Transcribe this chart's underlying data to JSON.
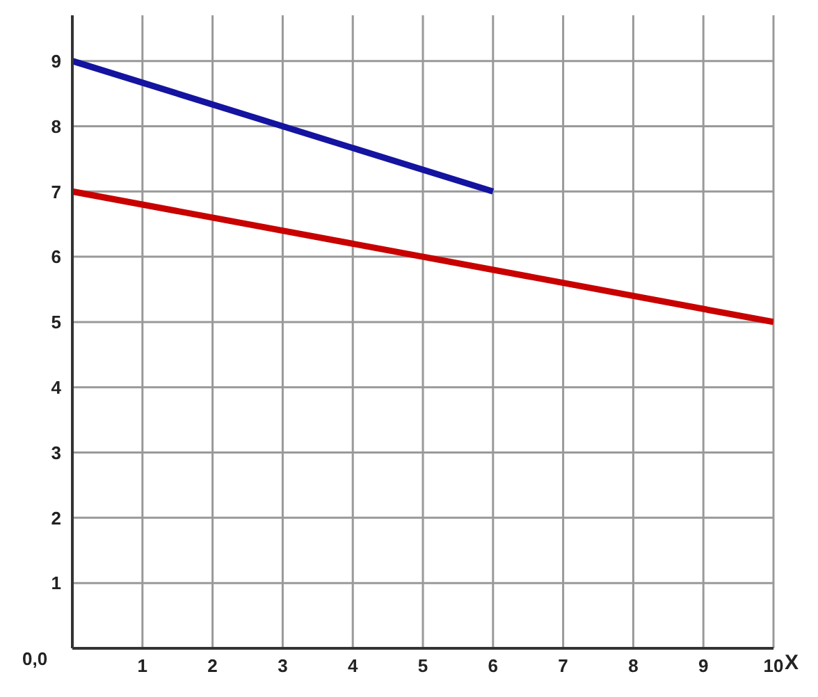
{
  "chart_data": {
    "type": "line",
    "xlabel": "X",
    "xlim": [
      0,
      10
    ],
    "xticks": [
      1,
      2,
      3,
      4,
      5,
      6,
      7,
      8,
      9,
      10
    ],
    "ylim": [
      0,
      9.7
    ],
    "yticks": [
      1,
      2,
      3,
      4,
      5,
      6,
      7,
      8,
      9
    ],
    "grid": true,
    "marker": "none",
    "line_style": "solid",
    "annotations": [
      "0,0"
    ],
    "series": [
      {
        "color": "#1414a0",
        "x": [
          0,
          6
        ],
        "values": [
          9,
          7
        ]
      },
      {
        "color": "#c80000",
        "x": [
          0,
          10
        ],
        "values": [
          7,
          5
        ]
      }
    ]
  }
}
